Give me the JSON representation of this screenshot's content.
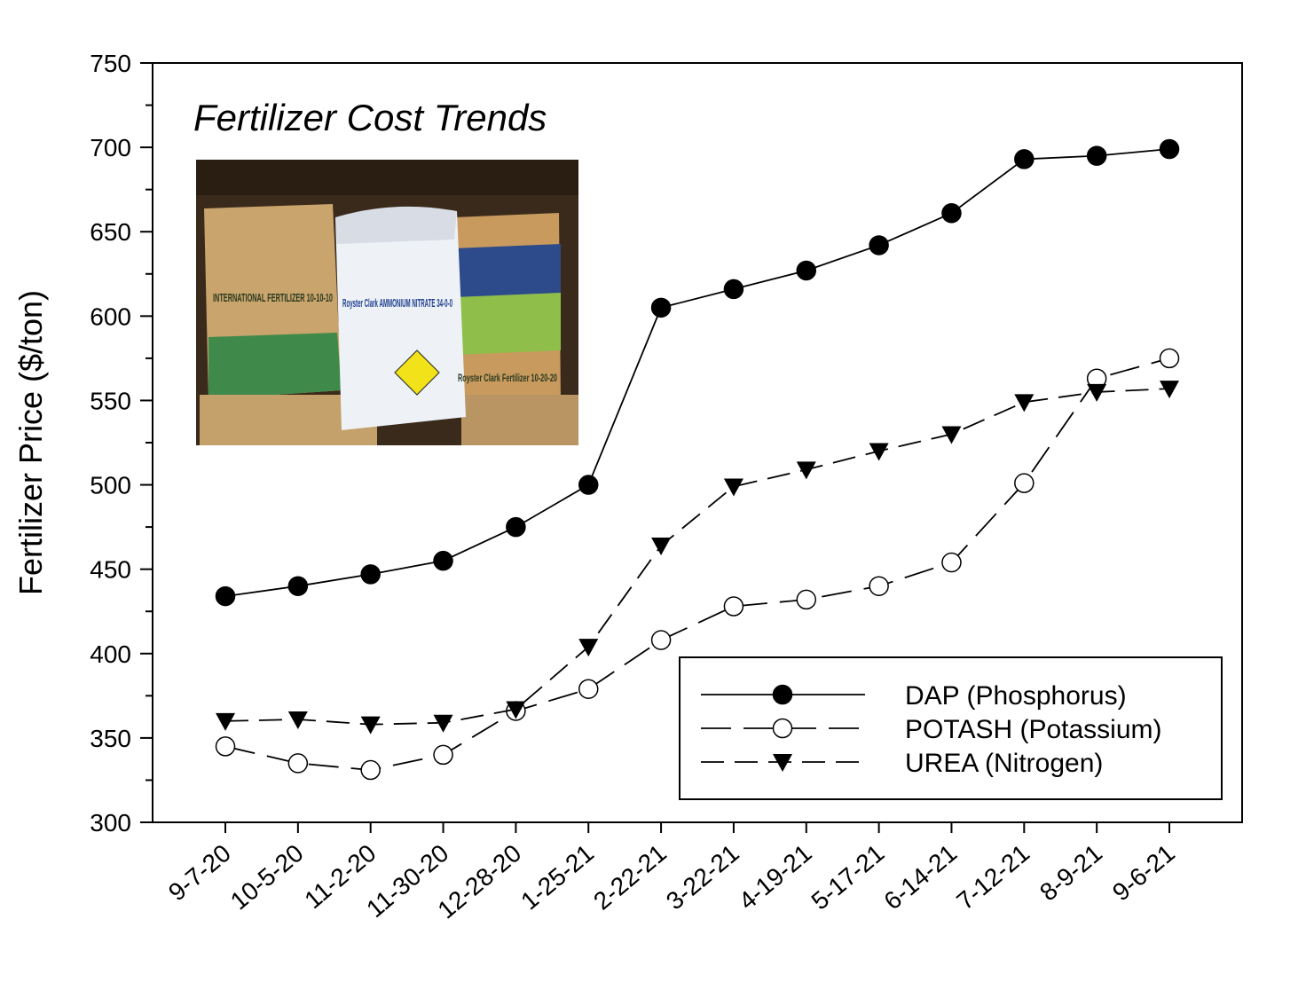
{
  "chart_data": {
    "type": "line",
    "title": "Fertilizer Cost Trends",
    "xlabel": "",
    "ylabel": "Fertilizer Price ($/ton)",
    "ylim": [
      300,
      750
    ],
    "yticks": [
      300,
      350,
      400,
      450,
      500,
      550,
      600,
      650,
      700,
      750
    ],
    "grid": false,
    "legend_position": "bottom-right",
    "categories": [
      "9-7-20",
      "10-5-20",
      "11-2-20",
      "11-30-20",
      "12-28-20",
      "1-25-21",
      "2-22-21",
      "3-22-21",
      "4-19-21",
      "5-17-21",
      "6-14-21",
      "7-12-21",
      "8-9-21",
      "9-6-21"
    ],
    "series": [
      {
        "name": "DAP (Phosphorus)",
        "line": "solid",
        "marker": "filled-circle",
        "values": [
          434,
          440,
          447,
          455,
          475,
          500,
          605,
          616,
          627,
          642,
          661,
          693,
          695,
          699
        ]
      },
      {
        "name": "POTASH (Potassium)",
        "line": "long-dash",
        "marker": "open-circle",
        "values": [
          345,
          335,
          331,
          340,
          366,
          379,
          408,
          428,
          432,
          440,
          454,
          501,
          563,
          575
        ]
      },
      {
        "name": "UREA (Nitrogen)",
        "line": "dash",
        "marker": "filled-triangle-down",
        "values": [
          360,
          361,
          358,
          359,
          367,
          404,
          464,
          499,
          509,
          520,
          530,
          549,
          555,
          557
        ]
      }
    ],
    "inset_photo": {
      "description_labels": [
        "INTERNATIONAL FERTILIZER 10-10-10",
        "Royster Clark AMMONIUM NITRATE 34-0-0",
        "Royster Clark Fertilizer 10-20-20"
      ]
    }
  }
}
